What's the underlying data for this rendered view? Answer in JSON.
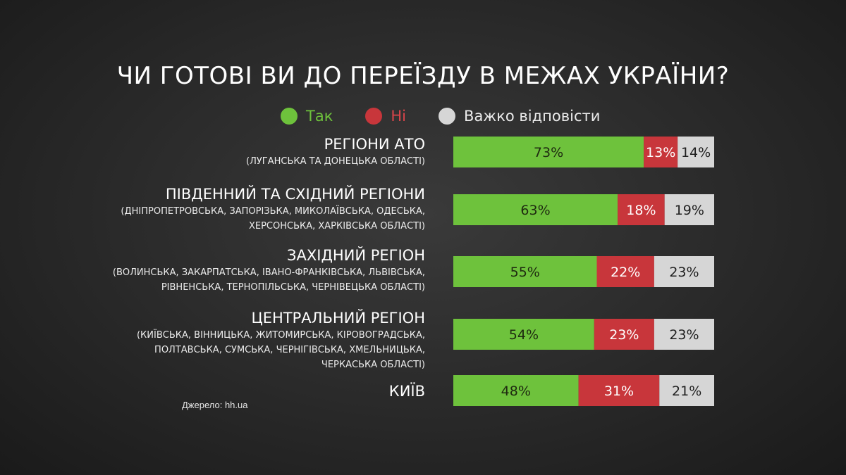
{
  "title": "ЧИ ГОТОВІ ВИ ДО ПЕРЕЇЗДУ В МЕЖАХ УКРАЇНИ?",
  "legend": [
    {
      "label": "Так",
      "color": "#6ec23c"
    },
    {
      "label": "Ні",
      "color": "#c8363b"
    },
    {
      "label": "Важко відповісти",
      "color": "#d6d6d6"
    }
  ],
  "source": "Джерело: hh.ua",
  "categories": [
    {
      "name": "РЕГІОНИ АТО",
      "sub": [
        "(ЛУГАНСЬКА ТА ДОНЕЦЬКА ОБЛАСТІ)"
      ]
    },
    {
      "name": "ПІВДЕННИЙ ТА СХІДНИЙ РЕГІОНИ",
      "sub": [
        "(ДНІПРОПЕТРОВСЬКА, ЗАПОРІЗЬКА, МИКОЛАЇВСЬКА, ОДЕСЬКА,",
        "ХЕРСОНСЬКА, ХАРКІВСЬКА ОБЛАСТІ)"
      ]
    },
    {
      "name": "ЗАХІДНИЙ РЕГІОН",
      "sub": [
        "(ВОЛИНСЬКА, ЗАКАРПАТСЬКА, ІВАНО-ФРАНКІВСЬКА, ЛЬВІВСЬКА,",
        "РІВНЕНСЬКА, ТЕРНОПІЛЬСЬКА, ЧЕРНІВЕЦЬКА ОБЛАСТІ)"
      ]
    },
    {
      "name": "ЦЕНТРАЛЬНИЙ РЕГІОН",
      "sub": [
        "(КИЇВСЬКА, ВІННИЦЬКА, ЖИТОМИРСЬКА, КІРОВОГРАДСЬКА,",
        "ПОЛТАВСЬКА, СУМСЬКА, ЧЕРНІГІВСЬКА, ХМЕЛЬНИЦЬКА,",
        "ЧЕРКАСЬКА ОБЛАСТІ)"
      ]
    },
    {
      "name": "КИЇВ",
      "sub": []
    }
  ],
  "chart_data": {
    "type": "bar",
    "orientation": "horizontal",
    "stacked": "100%",
    "title": "ЧИ ГОТОВІ ВИ ДО ПЕРЕЇЗДУ В МЕЖАХ УКРАЇНИ?",
    "categories": [
      "РЕГІОНИ АТО",
      "ПІВДЕННИЙ ТА СХІДНИЙ РЕГІОНИ",
      "ЗАХІДНИЙ РЕГІОН",
      "ЦЕНТРАЛЬНИЙ РЕГІОН",
      "КИЇВ"
    ],
    "series": [
      {
        "name": "Так",
        "color": "#6ec23c",
        "values": [
          73,
          63,
          55,
          54,
          48
        ]
      },
      {
        "name": "Ні",
        "color": "#c8363b",
        "values": [
          13,
          18,
          22,
          23,
          31
        ]
      },
      {
        "name": "Важко відповісти",
        "color": "#d6d6d6",
        "values": [
          14,
          19,
          23,
          23,
          21
        ]
      }
    ],
    "value_suffix": "%",
    "legend_position": "top",
    "grid": false
  }
}
